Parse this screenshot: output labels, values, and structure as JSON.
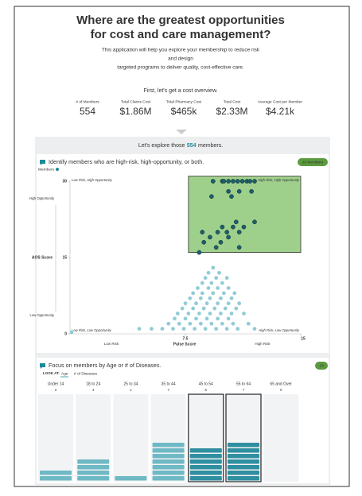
{
  "header": {
    "title_lines": [
      "Where are the greatest opportunities",
      "for cost and care management?"
    ],
    "intro_lines": [
      "This application will help you explore your membership to reduce risk",
      "and design",
      "targeted programs to deliver quality, cost-effective care."
    ]
  },
  "overview": {
    "prompt": "First, let's get a cost overview.",
    "kpis": [
      {
        "label": "# of Members",
        "value": "554"
      },
      {
        "label": "Total Claims Cost",
        "value": "$1.86M"
      },
      {
        "label": "Total Pharmacy Cost",
        "value": "$465k"
      },
      {
        "label": "Total Cost",
        "value": "$2.33M"
      },
      {
        "label": "Average Cost per Member",
        "value": "$4.21k"
      }
    ]
  },
  "explore": {
    "before": "Let's explore those",
    "count": "554",
    "after": "members."
  },
  "scatter": {
    "heading": "Identify members who are high-risk, high-opportunity, or both.",
    "badge": "26 Members",
    "legend": "Members",
    "quadrants": [
      "Low Risk, High Opportunity",
      "High Risk, High Opportunity",
      "Low Risk, Low Opportunity",
      "High Risk, Low Opportunity"
    ],
    "y_label": "AOS Score",
    "y_high": "High Opportunity",
    "y_low": "Low Opportunity",
    "x_label": "Pulse Score",
    "x_low": "Low Risk",
    "x_high": "High Risk",
    "xlim": [
      0,
      15
    ],
    "ylim": [
      0,
      30
    ],
    "xticks": [
      7.5,
      15
    ],
    "yticks": [
      0,
      15,
      30
    ],
    "highlight": {
      "x": [
        7.7,
        15
      ],
      "y": [
        16,
        31
      ]
    },
    "points": [
      [
        9.9,
        30
      ],
      [
        10.3,
        30
      ],
      [
        10.6,
        30
      ],
      [
        10.9,
        30
      ],
      [
        11.2,
        30
      ],
      [
        11.5,
        30
      ],
      [
        11.7,
        30
      ],
      [
        12.0,
        30
      ],
      [
        9.3,
        30
      ],
      [
        10.0,
        30
      ],
      [
        10.3,
        28
      ],
      [
        11.0,
        28
      ],
      [
        11.8,
        28
      ],
      [
        9.2,
        27
      ],
      [
        10.5,
        27
      ],
      [
        10.8,
        22
      ],
      [
        12.0,
        22
      ],
      [
        9.9,
        21
      ],
      [
        10.6,
        21
      ],
      [
        11.3,
        21
      ],
      [
        8.6,
        20
      ],
      [
        9.6,
        20
      ],
      [
        10.2,
        20
      ],
      [
        11.0,
        20
      ],
      [
        9.1,
        19
      ],
      [
        10.3,
        19
      ],
      [
        8.7,
        18
      ],
      [
        9.8,
        18
      ],
      [
        9.5,
        17
      ],
      [
        11.0,
        17
      ],
      [
        8.4,
        16
      ],
      [
        9.3,
        13
      ],
      [
        9.0,
        12
      ],
      [
        9.7,
        12
      ],
      [
        8.8,
        11
      ],
      [
        9.5,
        11
      ],
      [
        10.2,
        11
      ],
      [
        8.6,
        10
      ],
      [
        9.2,
        10
      ],
      [
        9.9,
        10
      ],
      [
        8.3,
        9
      ],
      [
        9.0,
        9
      ],
      [
        9.6,
        9
      ],
      [
        10.3,
        9
      ],
      [
        8.0,
        8
      ],
      [
        8.6,
        8
      ],
      [
        9.3,
        8
      ],
      [
        10.0,
        8
      ],
      [
        10.7,
        8
      ],
      [
        7.8,
        7
      ],
      [
        8.5,
        7
      ],
      [
        9.1,
        7
      ],
      [
        9.8,
        7
      ],
      [
        10.5,
        7
      ],
      [
        7.5,
        6
      ],
      [
        8.2,
        6
      ],
      [
        8.9,
        6
      ],
      [
        9.6,
        6
      ],
      [
        10.3,
        6
      ],
      [
        11.0,
        6
      ],
      [
        7.3,
        5
      ],
      [
        8.0,
        5
      ],
      [
        8.7,
        5
      ],
      [
        9.4,
        5
      ],
      [
        10.1,
        5
      ],
      [
        10.8,
        5
      ],
      [
        7.0,
        4
      ],
      [
        7.7,
        4
      ],
      [
        8.4,
        4
      ],
      [
        9.1,
        4
      ],
      [
        9.8,
        4
      ],
      [
        10.5,
        4
      ],
      [
        11.3,
        4
      ],
      [
        6.8,
        3
      ],
      [
        7.5,
        3
      ],
      [
        8.2,
        3
      ],
      [
        8.9,
        3
      ],
      [
        9.6,
        3
      ],
      [
        10.3,
        3
      ],
      [
        6.4,
        2
      ],
      [
        7.1,
        2
      ],
      [
        7.8,
        2
      ],
      [
        8.5,
        2
      ],
      [
        9.2,
        2
      ],
      [
        9.9,
        2
      ],
      [
        10.6,
        2
      ],
      [
        11.6,
        2
      ],
      [
        4.5,
        1
      ],
      [
        5.3,
        1
      ],
      [
        6.0,
        1
      ],
      [
        6.7,
        1
      ],
      [
        7.4,
        1
      ],
      [
        8.1,
        1
      ],
      [
        8.8,
        1
      ],
      [
        9.5,
        1
      ],
      [
        10.2,
        1
      ],
      [
        10.9,
        1
      ],
      [
        12.0,
        1
      ],
      [
        0.1,
        0.3
      ]
    ]
  },
  "age": {
    "heading": "Focus on members by Age or # of Diseases.",
    "badge": "13",
    "look_at": "LOOK AT:",
    "tabs": [
      "Age",
      "# of Diseases"
    ],
    "groups": [
      {
        "label": "Under 14",
        "count": "2",
        "selected": false
      },
      {
        "label": "18 to 24",
        "count": "4",
        "selected": false
      },
      {
        "label": "25 to 34",
        "count": "1",
        "selected": false
      },
      {
        "label": "35 to 44",
        "count": "7",
        "selected": false
      },
      {
        "label": "45 to 54",
        "count": "6",
        "selected": true
      },
      {
        "label": "55 to 64",
        "count": "7",
        "selected": true
      },
      {
        "label": "65 and Over",
        "count": "0",
        "selected": false
      }
    ]
  }
}
